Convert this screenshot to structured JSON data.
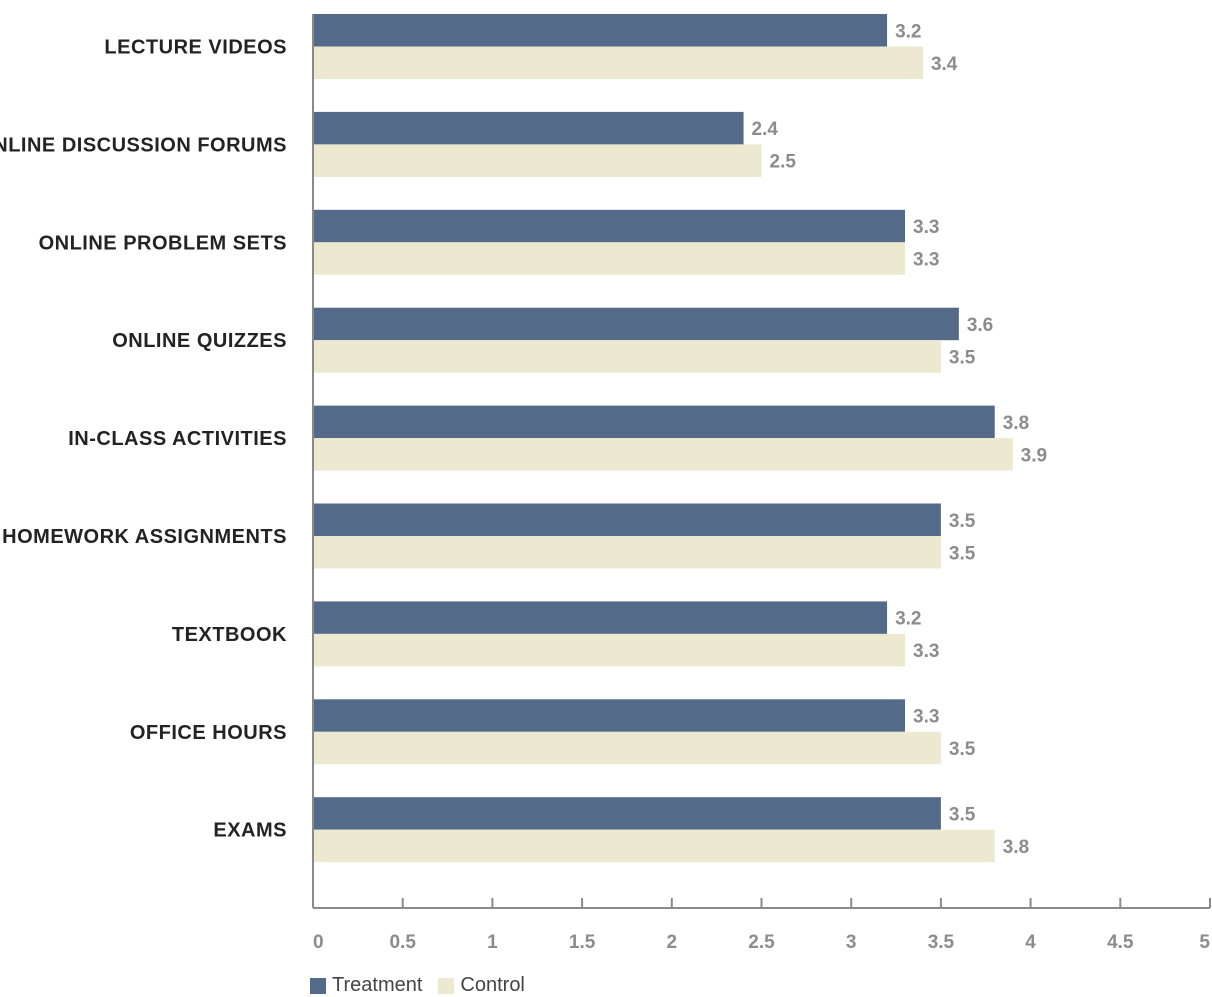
{
  "chart_data": {
    "type": "bar",
    "orientation": "horizontal",
    "categories": [
      "LECTURE VIDEOS",
      "ONLINE DISCUSSION FORUMS",
      "ONLINE PROBLEM SETS",
      "ONLINE QUIZZES",
      "IN-CLASS ACTIVITIES",
      "HOMEWORK ASSIGNMENTS",
      "TEXTBOOK",
      "OFFICE HOURS",
      "EXAMS"
    ],
    "series": [
      {
        "name": "Treatment",
        "color": "#536b88",
        "values": [
          3.2,
          2.4,
          3.3,
          3.6,
          3.8,
          3.5,
          3.2,
          3.3,
          3.5
        ]
      },
      {
        "name": "Control",
        "color": "#ede8d0",
        "values": [
          3.4,
          2.5,
          3.3,
          3.5,
          3.9,
          3.5,
          3.3,
          3.5,
          3.8
        ]
      }
    ],
    "xlim": [
      0,
      5
    ],
    "xticks": [
      0,
      0.5,
      1,
      1.5,
      2,
      2.5,
      3,
      3.5,
      4,
      4.5,
      5
    ],
    "grid": false,
    "legend_position": "bottom-left",
    "title": "",
    "xlabel": "",
    "ylabel": ""
  }
}
